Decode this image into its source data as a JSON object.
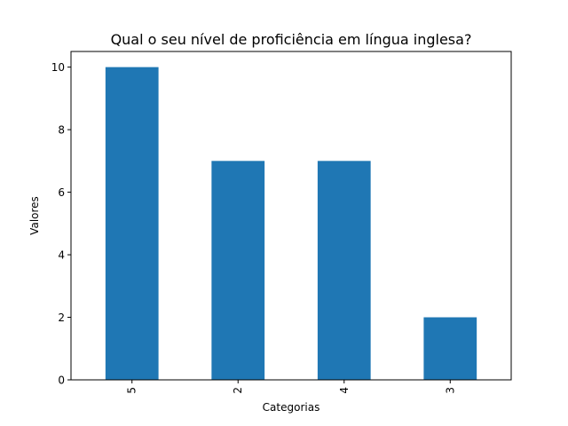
{
  "chart_data": {
    "type": "bar",
    "title": "Qual o seu nível de proficiência em língua inglesa?",
    "xlabel": "Categorias",
    "ylabel": "Valores",
    "categories": [
      "5",
      "2",
      "4",
      "3"
    ],
    "values": [
      10,
      7,
      7,
      2
    ],
    "ylim": [
      0,
      10.5
    ],
    "yticks": [
      0,
      2,
      4,
      6,
      8,
      10
    ],
    "bar_color": "#1f77b4",
    "grid": false,
    "xtick_rotation": 90
  }
}
